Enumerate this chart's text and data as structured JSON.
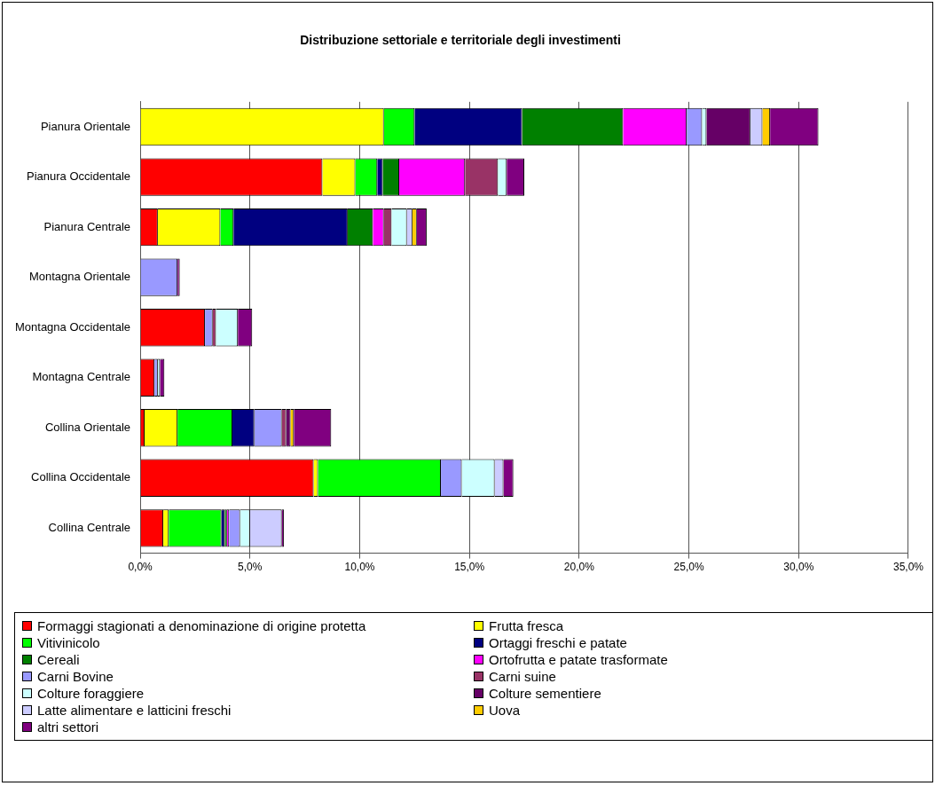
{
  "chart_data": {
    "type": "bar",
    "orientation": "horizontal",
    "stacked": true,
    "title": "Distribuzione settoriale e territoriale degli investimenti",
    "categories": [
      "Pianura Orientale",
      "Pianura Occidentale",
      "Pianura Centrale",
      "Montagna Orientale",
      "Montagna Occidentale",
      "Montagna Centrale",
      "Collina Orientale",
      "Collina Occidentale",
      "Collina Centrale"
    ],
    "series": [
      {
        "name": "Formaggi stagionati a denominazione di origine protetta",
        "color": "#ff0000",
        "values": [
          null,
          8.3,
          0.8,
          null,
          2.95,
          0.65,
          0.2,
          7.9,
          1.05
        ]
      },
      {
        "name": "Frutta fresca",
        "color": "#ffff00",
        "values": [
          11.1,
          1.5,
          2.85,
          null,
          null,
          null,
          1.5,
          0.2,
          0.25
        ]
      },
      {
        "name": "Vitivinicolo",
        "color": "#00ff00",
        "values": [
          1.4,
          1.0,
          0.6,
          null,
          null,
          null,
          2.5,
          5.6,
          2.4
        ]
      },
      {
        "name": "Ortaggi freschi e patate",
        "color": "#000080",
        "values": [
          4.9,
          0.25,
          5.2,
          null,
          null,
          null,
          1.0,
          null,
          0.15
        ]
      },
      {
        "name": "Cereali",
        "color": "#008000",
        "values": [
          4.6,
          0.75,
          1.15,
          null,
          null,
          null,
          null,
          null,
          0.1
        ]
      },
      {
        "name": "Ortofrutta e patate trasformate",
        "color": "#ff00ff",
        "values": [
          2.9,
          3.0,
          0.5,
          null,
          null,
          null,
          null,
          null,
          0.1
        ]
      },
      {
        "name": "Carni Bovine",
        "color": "#9999ff",
        "values": [
          0.7,
          null,
          null,
          1.7,
          0.35,
          0.15,
          1.25,
          0.95,
          0.5
        ]
      },
      {
        "name": "Carni suine",
        "color": "#993366",
        "values": [
          null,
          1.5,
          0.35,
          null,
          0.15,
          null,
          0.2,
          null,
          null
        ]
      },
      {
        "name": "Colture foraggiere",
        "color": "#ccffff",
        "values": [
          0.2,
          0.4,
          0.7,
          null,
          1.0,
          0.1,
          null,
          1.5,
          0.45
        ]
      },
      {
        "name": "Colture sementiere",
        "color": "#660066",
        "values": [
          2.0,
          null,
          null,
          null,
          null,
          null,
          0.2,
          null,
          null
        ]
      },
      {
        "name": "Latte alimentare e latticini freschi",
        "color": "#ccccff",
        "values": [
          0.55,
          null,
          0.25,
          null,
          null,
          null,
          null,
          0.4,
          1.45
        ]
      },
      {
        "name": "Uova",
        "color": "#ffcc00",
        "values": [
          0.35,
          null,
          0.2,
          null,
          null,
          null,
          0.15,
          null,
          null
        ]
      },
      {
        "name": "altri settori",
        "color": "#800080",
        "values": [
          2.2,
          0.8,
          0.45,
          0.1,
          0.65,
          0.2,
          1.7,
          0.45,
          0.1
        ]
      }
    ],
    "xlim": [
      0,
      35
    ],
    "xticks": [
      {
        "value": 0,
        "label": "0,0%"
      },
      {
        "value": 5,
        "label": "5,0%"
      },
      {
        "value": 10,
        "label": "10,0%"
      },
      {
        "value": 15,
        "label": "15,0%"
      },
      {
        "value": 20,
        "label": "20,0%"
      },
      {
        "value": 25,
        "label": "25,0%"
      },
      {
        "value": 30,
        "label": "30,0%"
      },
      {
        "value": 35,
        "label": "35,0%"
      }
    ],
    "grid": "x",
    "legend": "bottom"
  }
}
